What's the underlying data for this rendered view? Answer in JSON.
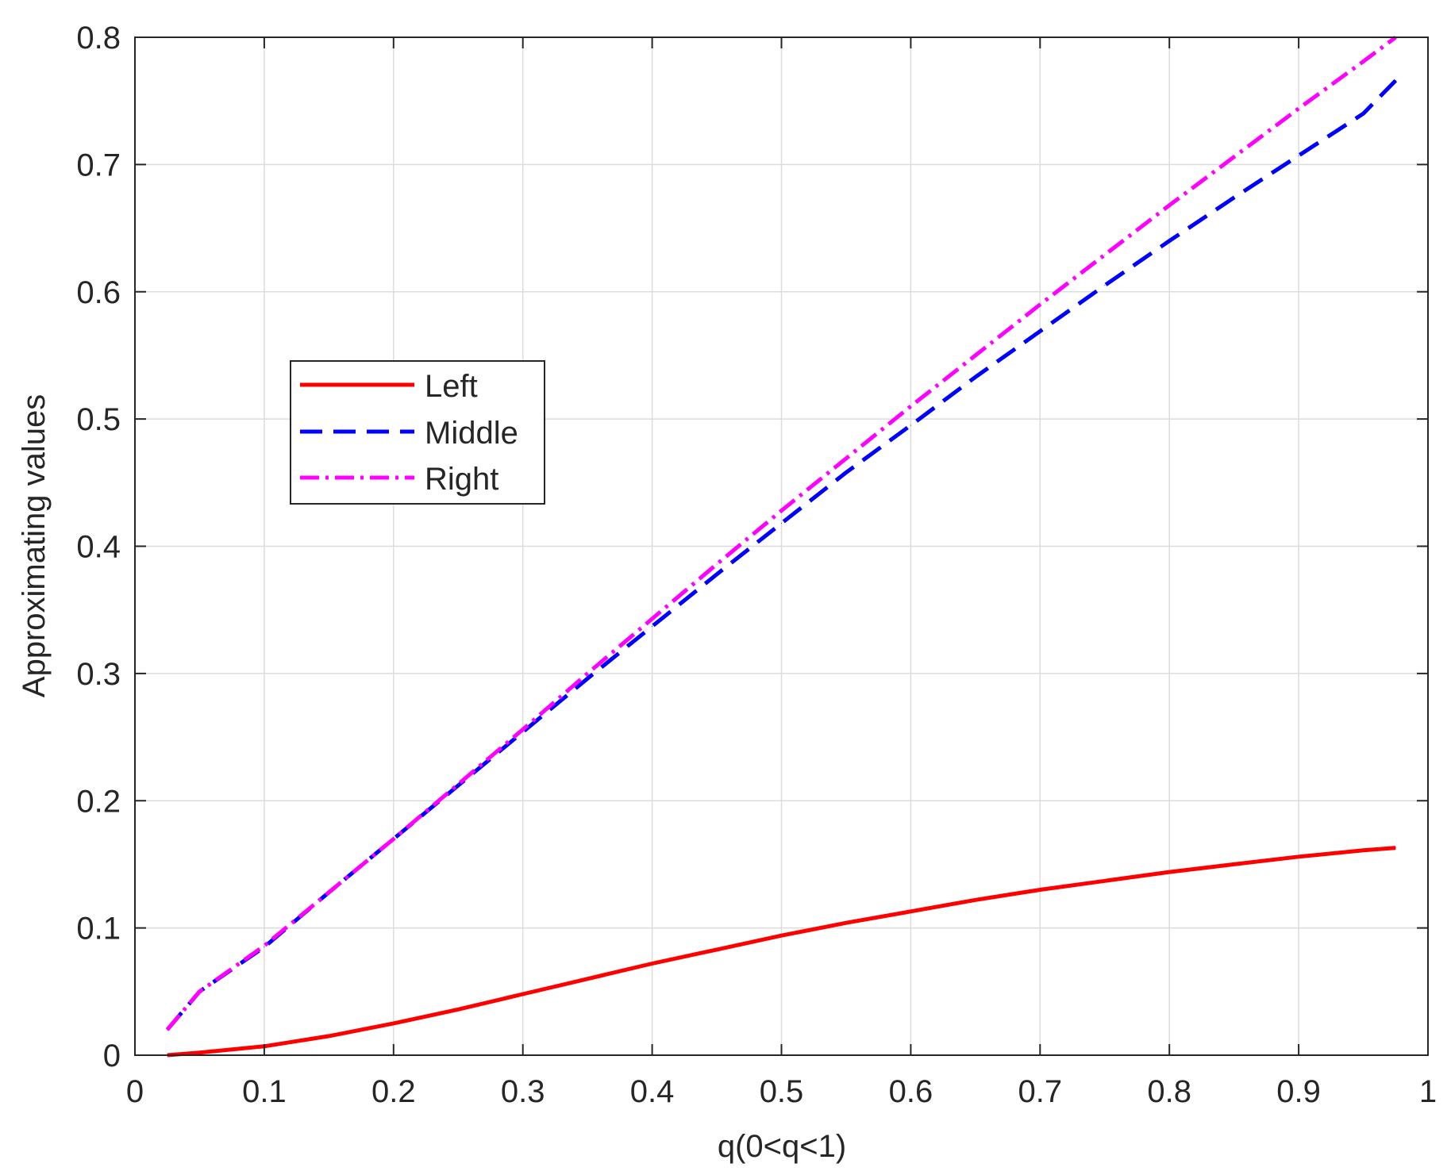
{
  "chart_data": {
    "type": "line",
    "xlabel": "q(0<q<1)",
    "ylabel": "Approximating values",
    "xlim": [
      0,
      1
    ],
    "ylim": [
      0,
      0.8
    ],
    "xticks": [
      "0",
      "0.1",
      "0.2",
      "0.3",
      "0.4",
      "0.5",
      "0.6",
      "0.7",
      "0.8",
      "0.9",
      "1"
    ],
    "yticks": [
      "0",
      "0.1",
      "0.2",
      "0.3",
      "0.4",
      "0.5",
      "0.6",
      "0.7",
      "0.8"
    ],
    "grid": true,
    "legend_position": "upper-left",
    "x": [
      0.025,
      0.05,
      0.1,
      0.15,
      0.2,
      0.25,
      0.3,
      0.35,
      0.4,
      0.45,
      0.5,
      0.55,
      0.6,
      0.65,
      0.7,
      0.75,
      0.8,
      0.85,
      0.9,
      0.95,
      0.975
    ],
    "series": [
      {
        "name": "Left",
        "color": "#ff0000",
        "style": "solid",
        "values": [
          0.0,
          0.002,
          0.007,
          0.015,
          0.025,
          0.036,
          0.048,
          0.06,
          0.072,
          0.083,
          0.094,
          0.104,
          0.113,
          0.122,
          0.13,
          0.137,
          0.144,
          0.15,
          0.156,
          0.161,
          0.163
        ]
      },
      {
        "name": "Middle",
        "color": "#0000ff",
        "style": "dashed",
        "values": [
          0.02,
          0.05,
          0.085,
          0.128,
          0.17,
          0.212,
          0.254,
          0.296,
          0.337,
          0.378,
          0.418,
          0.458,
          0.495,
          0.533,
          0.569,
          0.605,
          0.64,
          0.674,
          0.707,
          0.74,
          0.766
        ]
      },
      {
        "name": "Right",
        "color": "#ff00ff",
        "style": "dashdot",
        "values": [
          0.02,
          0.05,
          0.086,
          0.128,
          0.17,
          0.213,
          0.256,
          0.3,
          0.343,
          0.386,
          0.428,
          0.469,
          0.51,
          0.55,
          0.59,
          0.629,
          0.668,
          0.706,
          0.744,
          0.781,
          0.8
        ]
      }
    ]
  }
}
